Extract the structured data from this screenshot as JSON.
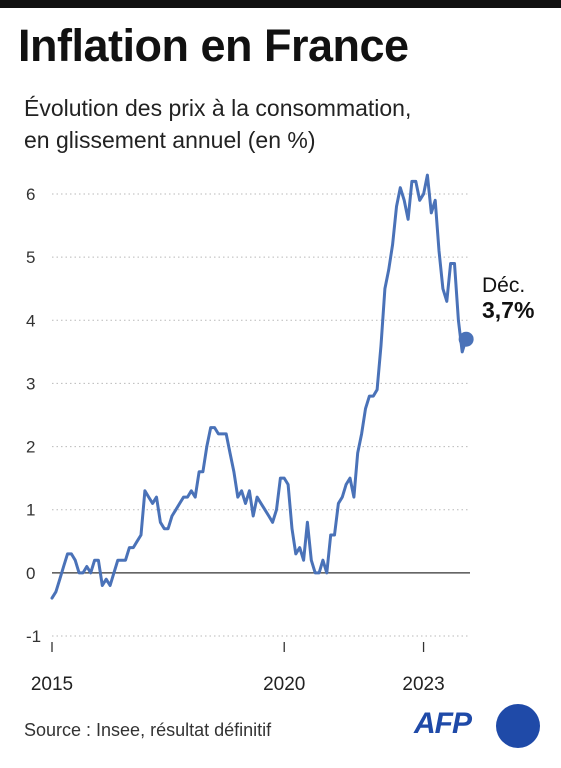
{
  "title": "Inflation en France",
  "subtitle_line1": "Évolution des prix à la consommation,",
  "subtitle_line2": "en glissement annuel (en %)",
  "source": "Source : Insee, résultat définitif",
  "logo_text": "AFP",
  "colors": {
    "line": "#4a72b8",
    "grid": "#b9b9b9",
    "zero_line": "#333333",
    "logo": "#1f4aa8"
  },
  "chart_data": {
    "type": "line",
    "title": "Inflation en France",
    "subtitle": "Évolution des prix à la consommation, en glissement annuel (en %)",
    "xlabel": "",
    "ylabel": "",
    "ylim": [
      -1,
      6.5
    ],
    "xlim": [
      2015.0,
      2024.0
    ],
    "y_ticks": [
      6,
      5,
      4,
      3,
      2,
      1,
      0,
      -1
    ],
    "y_tick_labels": [
      "6",
      "5",
      "4",
      "3",
      "2",
      "1",
      "0",
      "-1"
    ],
    "x_ticks": [
      2015,
      2020,
      2023
    ],
    "x_tick_labels": [
      "2015",
      "2020",
      "2023"
    ],
    "grid": "horizontal dotted",
    "series": [
      {
        "x": [
          2015.0,
          2015.083,
          2015.167,
          2015.25,
          2015.333,
          2015.417,
          2015.5,
          2015.583,
          2015.667,
          2015.75,
          2015.833,
          2015.917,
          2016.0,
          2016.083,
          2016.167,
          2016.25,
          2016.333,
          2016.417,
          2016.5,
          2016.583,
          2016.667,
          2016.75,
          2016.833,
          2016.917,
          2017.0,
          2017.083,
          2017.167,
          2017.25,
          2017.333,
          2017.417,
          2017.5,
          2017.583,
          2017.667,
          2017.75,
          2017.833,
          2017.917,
          2018.0,
          2018.083,
          2018.167,
          2018.25,
          2018.333,
          2018.417,
          2018.5,
          2018.583,
          2018.667,
          2018.75,
          2018.833,
          2018.917,
          2019.0,
          2019.083,
          2019.167,
          2019.25,
          2019.333,
          2019.417,
          2019.5,
          2019.583,
          2019.667,
          2019.75,
          2019.833,
          2019.917,
          2020.0,
          2020.083,
          2020.167,
          2020.25,
          2020.333,
          2020.417,
          2020.5,
          2020.583,
          2020.667,
          2020.75,
          2020.833,
          2020.917,
          2021.0,
          2021.083,
          2021.167,
          2021.25,
          2021.333,
          2021.417,
          2021.5,
          2021.583,
          2021.667,
          2021.75,
          2021.833,
          2021.917,
          2022.0,
          2022.083,
          2022.167,
          2022.25,
          2022.333,
          2022.417,
          2022.5,
          2022.583,
          2022.667,
          2022.75,
          2022.833,
          2022.917,
          2023.0,
          2023.083,
          2023.167,
          2023.25,
          2023.333,
          2023.417,
          2023.5,
          2023.583,
          2023.667,
          2023.75,
          2023.833,
          2023.917
        ],
        "y": [
          -0.4,
          -0.3,
          -0.1,
          0.1,
          0.3,
          0.3,
          0.2,
          0.0,
          0.0,
          0.1,
          0.0,
          0.2,
          0.2,
          -0.2,
          -0.1,
          -0.2,
          0.0,
          0.2,
          0.2,
          0.2,
          0.4,
          0.4,
          0.5,
          0.6,
          1.3,
          1.2,
          1.1,
          1.2,
          0.8,
          0.7,
          0.7,
          0.9,
          1.0,
          1.1,
          1.2,
          1.2,
          1.3,
          1.2,
          1.6,
          1.6,
          2.0,
          2.3,
          2.3,
          2.2,
          2.2,
          2.2,
          1.9,
          1.6,
          1.2,
          1.3,
          1.1,
          1.3,
          0.9,
          1.2,
          1.1,
          1.0,
          0.9,
          0.8,
          1.0,
          1.5,
          1.5,
          1.4,
          0.7,
          0.3,
          0.4,
          0.2,
          0.8,
          0.2,
          0.0,
          0.0,
          0.2,
          0.0,
          0.6,
          0.6,
          1.1,
          1.2,
          1.4,
          1.5,
          1.2,
          1.9,
          2.2,
          2.6,
          2.8,
          2.8,
          2.9,
          3.6,
          4.5,
          4.8,
          5.2,
          5.8,
          6.1,
          5.9,
          5.6,
          6.2,
          6.2,
          5.9,
          6.0,
          6.3,
          5.7,
          5.9,
          5.1,
          4.5,
          4.3,
          4.9,
          4.9,
          4.0,
          3.5,
          3.7
        ]
      }
    ],
    "annotation": {
      "label": "Déc.",
      "value_text": "3,7%",
      "x": 2023.917,
      "y": 3.7
    }
  }
}
